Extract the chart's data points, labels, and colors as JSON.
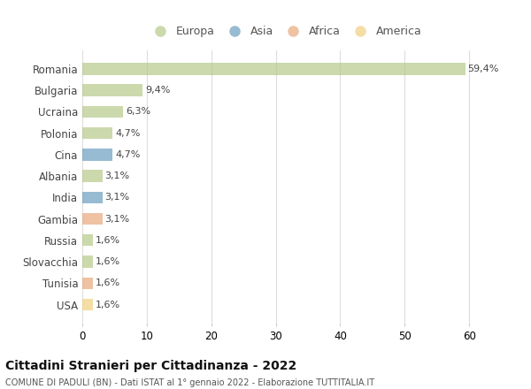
{
  "countries": [
    "Romania",
    "Bulgaria",
    "Ucraina",
    "Polonia",
    "Cina",
    "Albania",
    "India",
    "Gambia",
    "Russia",
    "Slovacchia",
    "Tunisia",
    "USA"
  ],
  "values": [
    59.4,
    9.4,
    6.3,
    4.7,
    4.7,
    3.1,
    3.1,
    3.1,
    1.6,
    1.6,
    1.6,
    1.6
  ],
  "labels": [
    "59,4%",
    "9,4%",
    "6,3%",
    "4,7%",
    "4,7%",
    "3,1%",
    "3,1%",
    "3,1%",
    "1,6%",
    "1,6%",
    "1,6%",
    "1,6%"
  ],
  "continents": [
    "Europa",
    "Europa",
    "Europa",
    "Europa",
    "Asia",
    "Europa",
    "Asia",
    "Africa",
    "Europa",
    "Europa",
    "Africa",
    "America"
  ],
  "colors": {
    "Europa": "#b5c98a",
    "Asia": "#6a9ec0",
    "Africa": "#e8a87c",
    "America": "#f0d080"
  },
  "legend_order": [
    "Europa",
    "Asia",
    "Africa",
    "America"
  ],
  "title": "Cittadini Stranieri per Cittadinanza - 2022",
  "subtitle": "COMUNE DI PADULI (BN) - Dati ISTAT al 1° gennaio 2022 - Elaborazione TUTTITALIA.IT",
  "xlim": [
    0,
    63
  ],
  "xticks": [
    0,
    10,
    20,
    30,
    40,
    50,
    60
  ],
  "background_color": "#ffffff",
  "bar_alpha": 0.7
}
